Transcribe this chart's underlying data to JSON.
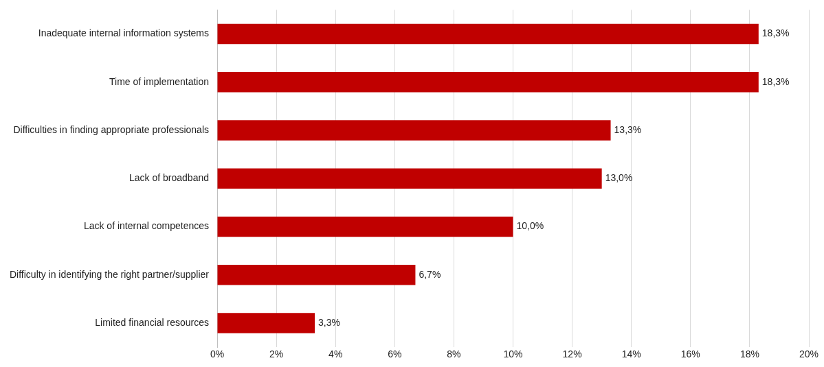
{
  "chart_data": {
    "type": "bar",
    "orientation": "horizontal",
    "categories": [
      "Inadequate internal information systems",
      "Time of implementation",
      "Difficulties in finding appropriate professionals",
      "Lack of broadband",
      "Lack of internal competences",
      "Difficulty in identifying the right partner/supplier",
      "Limited financial resources"
    ],
    "values": [
      18.3,
      18.3,
      13.3,
      13.0,
      10.0,
      6.7,
      3.3
    ],
    "value_labels": [
      "18,3%",
      "18,3%",
      "13,3%",
      "13,0%",
      "10,0%",
      "6,7%",
      "3,3%"
    ],
    "color": "#c00000",
    "xlim": [
      0,
      20
    ],
    "xticks": [
      {
        "value": 0,
        "label": "0%"
      },
      {
        "value": 2,
        "label": "2%"
      },
      {
        "value": 4,
        "label": "4%"
      },
      {
        "value": 6,
        "label": "6%"
      },
      {
        "value": 8,
        "label": "8%"
      },
      {
        "value": 10,
        "label": "10%"
      },
      {
        "value": 12,
        "label": "12%"
      },
      {
        "value": 14,
        "label": "14%"
      },
      {
        "value": 16,
        "label": "16%"
      },
      {
        "value": 18,
        "label": "18%"
      },
      {
        "value": 20,
        "label": "20%"
      }
    ],
    "grid": "x",
    "legend": false
  }
}
